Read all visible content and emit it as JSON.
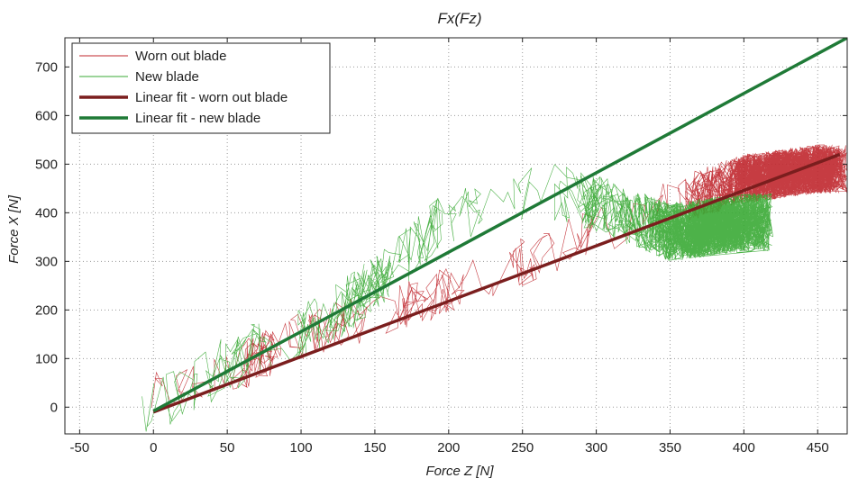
{
  "chart_data": {
    "type": "scatter",
    "title": "Fx(Fz)",
    "xlabel": "Force Z [N]",
    "ylabel": "Force X [N]",
    "xlim": [
      -60,
      470
    ],
    "ylim": [
      -55,
      760
    ],
    "xticks": [
      -50,
      0,
      50,
      100,
      150,
      200,
      250,
      300,
      350,
      400,
      450
    ],
    "yticks": [
      0,
      100,
      200,
      300,
      400,
      500,
      600,
      700
    ],
    "grid": true,
    "legend_position": "top-left",
    "series": [
      {
        "name": "Worn out blade",
        "style": "thin-line",
        "color": "#c0272d",
        "band": [
          [
            -5,
            15
          ],
          [
            20,
            40
          ],
          [
            50,
            70
          ],
          [
            100,
            145
          ],
          [
            150,
            190
          ],
          [
            200,
            240
          ],
          [
            250,
            300
          ],
          [
            300,
            360
          ],
          [
            350,
            420
          ],
          [
            400,
            470
          ],
          [
            450,
            490
          ]
        ],
        "band_halfwidth": 50
      },
      {
        "name": "New blade",
        "style": "thin-line",
        "color": "#3aaa35",
        "band": [
          [
            -10,
            -5
          ],
          [
            20,
            30
          ],
          [
            50,
            90
          ],
          [
            100,
            150
          ],
          [
            150,
            250
          ],
          [
            180,
            340
          ],
          [
            200,
            390
          ],
          [
            230,
            430
          ],
          [
            260,
            450
          ],
          [
            300,
            420
          ],
          [
            350,
            360
          ],
          [
            400,
            380
          ]
        ],
        "band_halfwidth": 60
      },
      {
        "name": "Linear fit - worn out blade",
        "style": "thick-line",
        "color": "#7b1e1e",
        "x": [
          0,
          465
        ],
        "y": [
          -10,
          520
        ]
      },
      {
        "name": "Linear fit - new blade",
        "style": "thick-line",
        "color": "#1f7a37",
        "x": [
          0,
          470
        ],
        "y": [
          -8,
          760
        ]
      }
    ]
  }
}
